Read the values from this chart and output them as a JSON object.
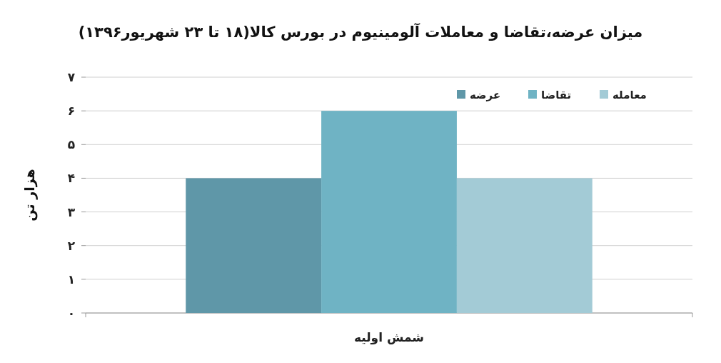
{
  "chart_data": {
    "type": "bar",
    "title": "میزان عرضه،تقاضا و معاملات آلومینیوم در بورس کالا(۱۸ تا ۲۳ شهریور۱۳۹۶)",
    "ylabel": "هزار تن",
    "categories": [
      "شمش اولیه"
    ],
    "series": [
      {
        "name": "عرضه",
        "color": "#5f97a8",
        "values": [
          4
        ]
      },
      {
        "name": "تقاضا",
        "color": "#6fb3c4",
        "values": [
          6
        ]
      },
      {
        "name": "معامله",
        "color": "#a3cbd6",
        "values": [
          4
        ]
      }
    ],
    "ylim": [
      0,
      7
    ],
    "yticks": [
      {
        "value": 0,
        "label": "۰"
      },
      {
        "value": 1,
        "label": "۱"
      },
      {
        "value": 2,
        "label": "۲"
      },
      {
        "value": 3,
        "label": "۳"
      },
      {
        "value": 4,
        "label": "۴"
      },
      {
        "value": 5,
        "label": "۵"
      },
      {
        "value": 6,
        "label": "۶"
      },
      {
        "value": 7,
        "label": "۷"
      }
    ],
    "grid": "y",
    "legend": "top right"
  }
}
